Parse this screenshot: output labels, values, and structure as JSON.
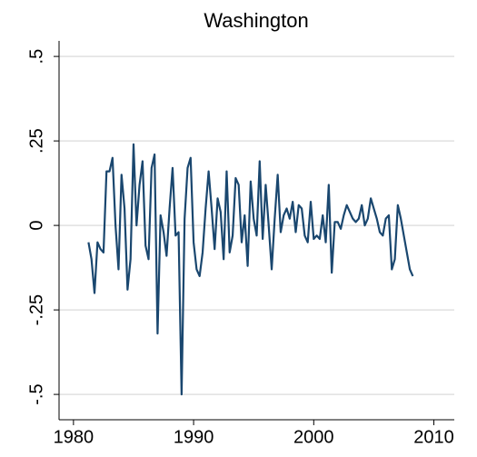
{
  "chart_data": {
    "type": "line",
    "title": "Washington",
    "x": [
      1981.25,
      1981.5,
      1981.75,
      1982,
      1982.25,
      1982.5,
      1982.75,
      1983,
      1983.25,
      1983.5,
      1983.75,
      1984,
      1984.25,
      1984.5,
      1984.75,
      1985,
      1985.25,
      1985.5,
      1985.75,
      1986,
      1986.25,
      1986.5,
      1986.75,
      1987,
      1987.25,
      1987.5,
      1987.75,
      1988,
      1988.25,
      1988.5,
      1988.75,
      1989,
      1989.25,
      1989.5,
      1989.75,
      1990,
      1990.25,
      1990.5,
      1990.75,
      1991,
      1991.25,
      1991.5,
      1991.75,
      1992,
      1992.25,
      1992.5,
      1992.75,
      1993,
      1993.25,
      1993.5,
      1993.75,
      1994,
      1994.25,
      1994.5,
      1994.75,
      1995,
      1995.25,
      1995.5,
      1995.75,
      1996,
      1996.25,
      1996.5,
      1996.75,
      1997,
      1997.25,
      1997.5,
      1997.75,
      1998,
      1998.25,
      1998.5,
      1998.75,
      1999,
      1999.25,
      1999.5,
      1999.75,
      2000,
      2000.25,
      2000.5,
      2000.75,
      2001,
      2001.25,
      2001.5,
      2001.75,
      2002,
      2002.25,
      2002.5,
      2002.75,
      2003,
      2003.25,
      2003.5,
      2003.75,
      2004,
      2004.25,
      2004.5,
      2004.75,
      2005,
      2005.25,
      2005.5,
      2005.75,
      2006,
      2006.25,
      2006.5,
      2006.75,
      2007,
      2007.25,
      2007.5,
      2007.75,
      2008,
      2008.25
    ],
    "series": [
      {
        "color": "#1a476f",
        "values": [
          -0.05,
          -0.1,
          -0.2,
          -0.05,
          -0.07,
          -0.08,
          0.16,
          0.16,
          0.2,
          0.0,
          -0.13,
          0.15,
          0.05,
          -0.19,
          -0.1,
          0.24,
          0.0,
          0.12,
          0.19,
          -0.06,
          -0.1,
          0.17,
          0.21,
          -0.32,
          0.03,
          -0.02,
          -0.09,
          0.05,
          0.17,
          -0.03,
          -0.02,
          -0.5,
          0.02,
          0.17,
          0.2,
          -0.05,
          -0.13,
          -0.15,
          -0.08,
          0.05,
          0.16,
          0.05,
          -0.07,
          0.08,
          0.04,
          -0.1,
          0.16,
          -0.08,
          -0.03,
          0.14,
          0.12,
          -0.05,
          0.03,
          -0.12,
          0.13,
          0.02,
          -0.03,
          0.19,
          -0.04,
          0.12,
          0.0,
          -0.13,
          0.02,
          0.15,
          -0.02,
          0.03,
          0.05,
          0.02,
          0.07,
          -0.02,
          0.06,
          0.05,
          -0.03,
          -0.05,
          0.07,
          -0.04,
          -0.03,
          -0.04,
          0.03,
          -0.05,
          0.12,
          -0.14,
          0.01,
          0.01,
          -0.01,
          0.03,
          0.06,
          0.04,
          0.02,
          0.01,
          0.02,
          0.06,
          0.0,
          0.02,
          0.08,
          0.05,
          0.02,
          -0.02,
          -0.03,
          0.02,
          0.03,
          -0.13,
          -0.1,
          0.06,
          0.02,
          -0.03,
          -0.08,
          -0.13,
          -0.15
        ]
      }
    ],
    "xlim": [
      1978.8,
      2011.7
    ],
    "xticks": [
      1980,
      1990,
      2000,
      2010
    ],
    "ylim": [
      -0.575,
      0.546
    ],
    "yticks": [
      {
        "value": -0.5,
        "label": "-.5"
      },
      {
        "value": -0.25,
        "label": "-.25"
      },
      0,
      {
        "value": 0.25,
        "label": ".25"
      },
      {
        "value": 0.5,
        "label": ".5"
      }
    ],
    "grid": true
  }
}
